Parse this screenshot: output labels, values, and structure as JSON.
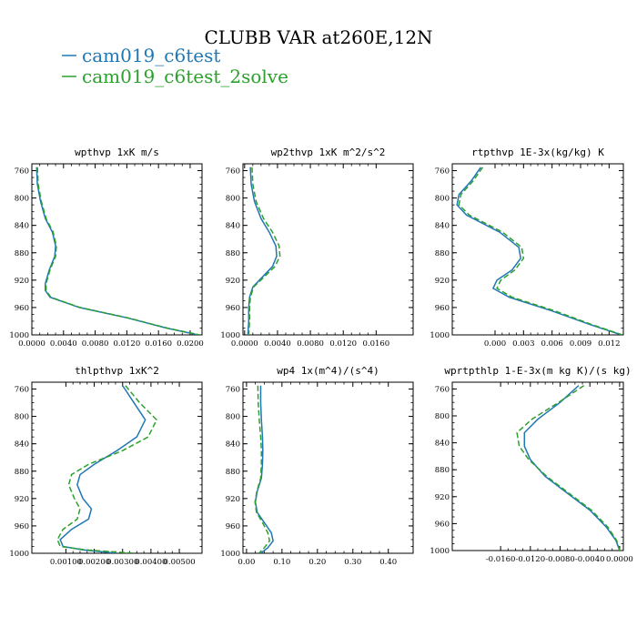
{
  "title": "CLUBB VAR at260E,12N",
  "legend": [
    {
      "label": "cam019_c6test",
      "color": "#1f77b4",
      "dash": ""
    },
    {
      "label": "cam019_c6test_2solve",
      "color": "#2ca02c",
      "dash": "6,3"
    }
  ],
  "chart_data": [
    {
      "type": "line",
      "title": "wpthvp  1xK m/s",
      "ylim": [
        1000,
        750
      ],
      "yticks": [
        760,
        800,
        840,
        880,
        920,
        960,
        1000
      ],
      "xlim": [
        0,
        0.0215
      ],
      "xticks": [
        0,
        0.004,
        0.008,
        0.012,
        0.016,
        0.02
      ],
      "xticklabels": [
        "0.0000",
        "0.0040",
        "0.0080",
        "0.0120",
        "0.0160",
        "0.0200"
      ],
      "series": [
        {
          "name": "cam019_c6test",
          "x": [
            0.0006,
            0.0007,
            0.0011,
            0.0017,
            0.0026,
            0.003,
            0.0029,
            0.0022,
            0.0017,
            0.0017,
            0.0023,
            0.006,
            0.012,
            0.017,
            0.021
          ],
          "y": [
            755,
            780,
            805,
            830,
            850,
            870,
            885,
            905,
            925,
            935,
            945,
            960,
            975,
            990,
            1000
          ]
        },
        {
          "name": "cam019_c6test_2solve",
          "x": [
            0.0007,
            0.0008,
            0.0012,
            0.0018,
            0.0027,
            0.0031,
            0.003,
            0.0023,
            0.0018,
            0.0018,
            0.0024,
            0.0061,
            0.0121,
            0.0171,
            0.0212
          ],
          "y": [
            755,
            780,
            805,
            830,
            850,
            870,
            885,
            905,
            925,
            935,
            945,
            960,
            975,
            990,
            1000
          ]
        }
      ]
    },
    {
      "type": "line",
      "title": "wp2thvp  1xK m^2/s^2",
      "ylim": [
        1000,
        750
      ],
      "yticks": [
        760,
        800,
        840,
        880,
        920,
        960,
        1000
      ],
      "xlim": [
        -0.0002,
        0.0205
      ],
      "xticks": [
        0,
        0.004,
        0.008,
        0.012,
        0.016
      ],
      "xticklabels": [
        "0.0000",
        "0.0040",
        "0.0080",
        "0.0120",
        "0.0160"
      ],
      "series": [
        {
          "name": "cam019_c6test",
          "x": [
            0.0007,
            0.0008,
            0.0012,
            0.002,
            0.003,
            0.0038,
            0.0039,
            0.0034,
            0.0022,
            0.001,
            0.0006,
            0.0005,
            0.0005,
            0.0004
          ],
          "y": [
            755,
            780,
            805,
            830,
            850,
            870,
            885,
            900,
            915,
            930,
            945,
            960,
            980,
            1000
          ]
        },
        {
          "name": "cam019_c6test_2solve",
          "x": [
            0.0009,
            0.001,
            0.0014,
            0.0023,
            0.0034,
            0.0042,
            0.0043,
            0.0037,
            0.0024,
            0.0011,
            0.0007,
            0.0006,
            0.0006,
            0.0005
          ],
          "y": [
            755,
            780,
            805,
            830,
            850,
            870,
            885,
            900,
            915,
            930,
            945,
            960,
            980,
            1000
          ]
        }
      ]
    },
    {
      "type": "line",
      "title": "rtpthvp  1E-3x(kg/kg) K",
      "ylim": [
        1000,
        750
      ],
      "yticks": [
        760,
        800,
        840,
        880,
        920,
        960,
        1000
      ],
      "xlim": [
        -0.0045,
        0.0135
      ],
      "xticks": [
        0,
        0.003,
        0.006,
        0.009,
        0.012
      ],
      "xticklabels": [
        "0.000",
        "0.003",
        "0.006",
        "0.009",
        "0.012"
      ],
      "series": [
        {
          "name": "cam019_c6test",
          "x": [
            -0.0015,
            -0.0025,
            -0.0038,
            -0.004,
            -0.003,
            0.0005,
            0.0025,
            0.0027,
            0.0018,
            0.0002,
            -0.0002,
            0.0015,
            0.006,
            0.01,
            0.0133
          ],
          "y": [
            755,
            775,
            795,
            810,
            825,
            850,
            872,
            888,
            905,
            920,
            932,
            945,
            965,
            985,
            1000
          ]
        },
        {
          "name": "cam019_c6test_2solve",
          "x": [
            -0.0013,
            -0.0023,
            -0.0036,
            -0.0038,
            -0.0027,
            0.0008,
            0.0028,
            0.003,
            0.0021,
            0.0006,
            0.0002,
            0.0018,
            0.0063,
            0.0102,
            0.0134
          ],
          "y": [
            755,
            775,
            795,
            810,
            825,
            850,
            872,
            888,
            905,
            920,
            932,
            945,
            965,
            985,
            1000
          ]
        }
      ]
    },
    {
      "type": "line",
      "title": "thlpthvp  1xK^2",
      "ylim": [
        1000,
        750
      ],
      "yticks": [
        760,
        800,
        840,
        880,
        920,
        960,
        1000
      ],
      "xlim": [
        -0.0002,
        0.0058
      ],
      "xticks": [
        0.001,
        0.002,
        0.003,
        0.004,
        0.005
      ],
      "xticklabels": [
        "0.00100",
        "0.00200",
        "0.00300",
        "0.00400",
        "0.00500"
      ],
      "series": [
        {
          "name": "cam019_c6test",
          "x": [
            0.003,
            0.0034,
            0.0038,
            0.0035,
            0.0028,
            0.002,
            0.0015,
            0.0014,
            0.0016,
            0.0019,
            0.0018,
            0.0012,
            0.0008,
            0.0009,
            0.0016,
            0.0028
          ],
          "y": [
            755,
            780,
            805,
            830,
            850,
            870,
            885,
            900,
            920,
            935,
            950,
            965,
            980,
            990,
            995,
            1000
          ]
        },
        {
          "name": "cam019_c6test_2solve",
          "x": [
            0.0031,
            0.0036,
            0.0042,
            0.0039,
            0.003,
            0.0018,
            0.0012,
            0.0011,
            0.0013,
            0.0015,
            0.0014,
            0.0009,
            0.0007,
            0.0008,
            0.0017,
            0.0034
          ],
          "y": [
            755,
            780,
            805,
            830,
            850,
            870,
            885,
            900,
            920,
            935,
            950,
            965,
            980,
            990,
            995,
            1000
          ]
        }
      ]
    },
    {
      "type": "line",
      "title": "wp4  1x(m^4)/(s^4)",
      "ylim": [
        1000,
        750
      ],
      "yticks": [
        760,
        800,
        840,
        880,
        920,
        960,
        1000
      ],
      "xlim": [
        -0.01,
        0.47
      ],
      "xticks": [
        0,
        0.1,
        0.2,
        0.3,
        0.4
      ],
      "xticklabels": [
        "0.00",
        "0.10",
        "0.20",
        "0.30",
        "0.40"
      ],
      "series": [
        {
          "name": "cam019_c6test",
          "x": [
            0.04,
            0.04,
            0.042,
            0.045,
            0.046,
            0.045,
            0.042,
            0.03,
            0.025,
            0.03,
            0.05,
            0.07,
            0.075,
            0.06,
            0.04
          ],
          "y": [
            755,
            780,
            805,
            830,
            850,
            870,
            890,
            910,
            925,
            940,
            955,
            970,
            982,
            992,
            1000
          ]
        },
        {
          "name": "cam019_c6test_2solve",
          "x": [
            0.032,
            0.033,
            0.036,
            0.04,
            0.042,
            0.042,
            0.04,
            0.029,
            0.024,
            0.028,
            0.045,
            0.06,
            0.065,
            0.05,
            0.035
          ],
          "y": [
            755,
            780,
            805,
            830,
            850,
            870,
            890,
            910,
            925,
            940,
            955,
            970,
            982,
            992,
            1000
          ]
        }
      ]
    },
    {
      "type": "line",
      "title": "wprtpthlp  1-E-3x(m kg K)/(s kg)",
      "ylim": [
        1000,
        750
      ],
      "yticks": [
        760,
        800,
        840,
        880,
        920,
        960,
        1000
      ],
      "xlim": [
        -0.0225,
        0.0005
      ],
      "xticks": [
        -0.016,
        -0.012,
        -0.008,
        -0.004,
        0
      ],
      "xticklabels": [
        "-0.0160",
        "-0.0120",
        "-0.0080",
        "-0.0040",
        "0.0000"
      ],
      "series": [
        {
          "name": "cam019_c6test",
          "x": [
            -0.0055,
            -0.008,
            -0.011,
            -0.0128,
            -0.0128,
            -0.012,
            -0.01,
            -0.007,
            -0.004,
            -0.0018,
            -0.0005,
            0.0
          ],
          "y": [
            755,
            780,
            805,
            825,
            845,
            865,
            890,
            915,
            940,
            965,
            985,
            1000
          ]
        },
        {
          "name": "cam019_c6test_2solve",
          "x": [
            -0.0048,
            -0.0082,
            -0.0118,
            -0.0138,
            -0.0135,
            -0.0122,
            -0.0098,
            -0.0068,
            -0.0038,
            -0.0016,
            -0.0004,
            0.0
          ],
          "y": [
            755,
            780,
            805,
            825,
            845,
            865,
            890,
            915,
            940,
            965,
            985,
            1000
          ]
        }
      ]
    }
  ]
}
